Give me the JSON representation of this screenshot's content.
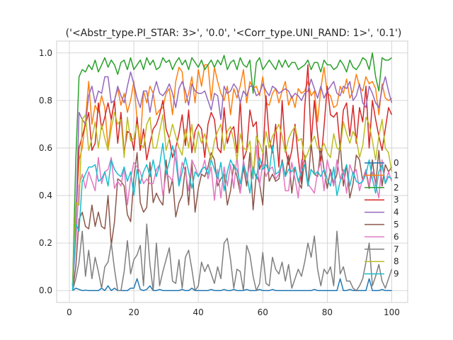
{
  "chart_data": {
    "type": "line",
    "title": "('<Abstr_type.PI_STAR: 3>', '0.0', '<Corr_type.UNI_RAND: 1>', '0.1')",
    "xlabel": "",
    "ylabel": "",
    "xlim": [
      -3.95,
      104.95
    ],
    "ylim": [
      -0.05,
      1.05
    ],
    "x_ticks": [
      0,
      20,
      40,
      60,
      80,
      100
    ],
    "y_ticks": [
      0.0,
      0.2,
      0.4,
      0.6,
      0.8,
      1.0
    ],
    "x_tick_labels": [
      "0",
      "20",
      "40",
      "60",
      "80",
      "100"
    ],
    "y_tick_labels": [
      "0.0",
      "0.2",
      "0.4",
      "0.6",
      "0.8",
      "1.0"
    ],
    "grid": true,
    "legend_position": "lower-right",
    "x_start": 1,
    "x_end": 100,
    "series": [
      {
        "name": "0",
        "color": "#1f77b4",
        "values": [
          0.0,
          0.01,
          0.005,
          0.0,
          0.002,
          0.0,
          0.0,
          0.0,
          0.0,
          0.01,
          0.0,
          0.02,
          0.0,
          0.01,
          0.0,
          0.0,
          0.0,
          0.0,
          0.01,
          0.01,
          0.05,
          0.005,
          0.0,
          0.005,
          0.02,
          0.0,
          0.0,
          0.005,
          0.0,
          0.0,
          0.0,
          0.0,
          0.0,
          0.0,
          0.005,
          0.0,
          0.0,
          0.01,
          0.0,
          0.0,
          0.0,
          0.0,
          0.0,
          0.005,
          0.0,
          0.0,
          0.0,
          0.005,
          0.0,
          0.0,
          0.005,
          0.0,
          0.0,
          0.0,
          0.005,
          0.0,
          0.0,
          0.0,
          0.005,
          0.0,
          0.0,
          0.0,
          0.005,
          0.0,
          0.0,
          0.0,
          0.0,
          0.0,
          0.0,
          0.0,
          0.0,
          0.0,
          0.0,
          0.0,
          0.0,
          0.005,
          0.0,
          0.0,
          0.0,
          0.0,
          0.0,
          0.0,
          0.0,
          0.05,
          0.0,
          0.0,
          0.005,
          0.0,
          0.0,
          0.0,
          0.0,
          0.0,
          0.05,
          0.0,
          0.0,
          0.0,
          0.005,
          0.0,
          0.0,
          0.0
        ]
      },
      {
        "name": "1",
        "color": "#ff7f0e",
        "values": [
          0.03,
          0.3,
          0.55,
          0.6,
          0.72,
          0.88,
          0.7,
          0.78,
          0.75,
          0.82,
          0.77,
          0.6,
          0.72,
          0.8,
          0.85,
          0.78,
          0.83,
          0.75,
          0.8,
          0.88,
          0.72,
          0.62,
          0.84,
          0.79,
          0.86,
          0.83,
          0.74,
          0.76,
          0.77,
          0.83,
          0.85,
          0.74,
          0.88,
          0.94,
          0.92,
          0.79,
          0.83,
          0.9,
          0.79,
          0.93,
          0.86,
          0.95,
          0.95,
          0.8,
          0.94,
          0.88,
          0.83,
          0.8,
          0.86,
          0.74,
          0.85,
          0.81,
          0.86,
          0.93,
          0.79,
          0.88,
          0.85,
          0.86,
          0.82,
          0.9,
          0.79,
          0.78,
          0.83,
          0.85,
          0.79,
          0.84,
          0.88,
          0.78,
          0.82,
          0.77,
          0.85,
          0.83,
          0.84,
          0.88,
          0.82,
          0.84,
          0.71,
          0.85,
          0.94,
          0.83,
          0.82,
          0.77,
          0.78,
          0.86,
          0.83,
          0.89,
          0.81,
          0.84,
          0.91,
          0.86,
          0.84,
          0.9,
          0.87,
          0.88,
          0.85,
          0.74,
          0.87,
          0.81,
          0.8,
          0.81
        ]
      },
      {
        "name": "2",
        "color": "#2ca02c",
        "values": [
          0.02,
          0.55,
          0.9,
          0.93,
          0.92,
          0.95,
          0.93,
          0.97,
          0.92,
          0.95,
          0.98,
          0.94,
          0.97,
          0.95,
          0.91,
          0.96,
          0.97,
          0.93,
          0.98,
          0.93,
          0.95,
          0.97,
          0.93,
          0.98,
          0.95,
          0.97,
          0.93,
          0.94,
          0.98,
          0.96,
          0.97,
          0.93,
          0.96,
          0.98,
          0.95,
          0.97,
          0.93,
          0.98,
          0.96,
          0.94,
          0.97,
          0.93,
          0.95,
          0.97,
          0.94,
          0.97,
          0.95,
          0.99,
          0.93,
          0.96,
          0.97,
          0.93,
          0.98,
          0.95,
          0.94,
          0.97,
          0.83,
          0.96,
          0.98,
          0.93,
          0.95,
          0.97,
          0.95,
          0.93,
          0.97,
          0.94,
          0.97,
          0.94,
          0.96,
          0.96,
          0.93,
          0.94,
          0.95,
          0.97,
          0.93,
          0.96,
          0.96,
          0.92,
          0.97,
          0.95,
          0.95,
          0.93,
          0.94,
          0.97,
          0.95,
          0.92,
          0.97,
          0.94,
          0.93,
          0.95,
          0.98,
          0.97,
          0.93,
          1.0,
          0.9,
          0.84,
          0.98,
          0.97,
          0.97,
          0.98
        ]
      },
      {
        "name": "3",
        "color": "#d62728",
        "values": [
          0.02,
          0.32,
          0.6,
          0.65,
          0.7,
          0.75,
          0.59,
          0.62,
          0.79,
          0.68,
          0.73,
          0.79,
          0.72,
          0.8,
          0.62,
          0.75,
          0.58,
          0.67,
          0.66,
          0.59,
          0.73,
          0.59,
          0.68,
          0.55,
          0.62,
          0.68,
          0.7,
          0.74,
          0.8,
          0.68,
          0.64,
          0.56,
          0.6,
          0.66,
          0.74,
          0.61,
          0.76,
          0.58,
          0.67,
          0.7,
          0.68,
          0.56,
          0.7,
          0.75,
          0.72,
          0.6,
          0.58,
          0.77,
          0.62,
          0.67,
          0.69,
          0.58,
          0.8,
          0.55,
          0.59,
          0.76,
          0.69,
          0.71,
          0.51,
          0.55,
          0.82,
          0.64,
          0.58,
          0.7,
          0.52,
          0.8,
          0.6,
          0.53,
          0.59,
          0.7,
          0.56,
          0.45,
          0.77,
          0.95,
          0.62,
          0.8,
          0.66,
          0.54,
          0.69,
          0.86,
          0.74,
          0.73,
          0.75,
          0.6,
          0.76,
          0.79,
          0.65,
          0.78,
          0.62,
          0.77,
          0.71,
          0.86,
          0.6,
          0.8,
          0.72,
          0.65,
          0.59,
          0.68,
          0.77,
          0.74
        ]
      },
      {
        "name": "4",
        "color": "#9467bd",
        "values": [
          0.02,
          0.28,
          0.75,
          0.72,
          0.7,
          0.82,
          0.86,
          0.79,
          0.84,
          0.83,
          0.9,
          0.9,
          0.79,
          0.8,
          0.86,
          0.82,
          0.79,
          0.86,
          0.92,
          0.87,
          0.81,
          0.77,
          0.84,
          0.84,
          0.75,
          0.83,
          0.88,
          0.83,
          0.82,
          0.84,
          0.87,
          0.83,
          0.77,
          0.85,
          0.88,
          0.84,
          0.78,
          0.87,
          0.84,
          0.83,
          0.83,
          0.84,
          0.8,
          0.76,
          0.83,
          0.82,
          0.72,
          0.86,
          0.83,
          0.84,
          0.87,
          0.85,
          0.79,
          0.84,
          0.82,
          0.86,
          0.86,
          0.82,
          0.83,
          0.87,
          0.84,
          0.82,
          0.86,
          0.85,
          0.83,
          0.84,
          0.85,
          0.84,
          0.81,
          0.83,
          0.82,
          0.8,
          0.83,
          0.84,
          0.89,
          0.85,
          0.81,
          0.86,
          0.81,
          0.84,
          0.86,
          0.88,
          0.83,
          0.82,
          0.86,
          0.85,
          0.88,
          0.8,
          0.82,
          0.87,
          0.79,
          0.77,
          0.86,
          0.83,
          0.79,
          0.77,
          0.85,
          0.9,
          0.84,
          0.79
        ]
      },
      {
        "name": "5",
        "color": "#8c564b",
        "values": [
          0.0,
          0.1,
          0.3,
          0.33,
          0.27,
          0.26,
          0.36,
          0.27,
          0.33,
          0.27,
          0.26,
          0.4,
          0.19,
          0.29,
          0.47,
          0.46,
          0.44,
          0.32,
          0.29,
          0.47,
          0.58,
          0.37,
          0.33,
          0.35,
          0.54,
          0.37,
          0.41,
          0.38,
          0.36,
          0.55,
          0.41,
          0.47,
          0.31,
          0.37,
          0.4,
          0.52,
          0.36,
          0.54,
          0.33,
          0.43,
          0.49,
          0.48,
          0.52,
          0.58,
          0.55,
          0.44,
          0.47,
          0.49,
          0.36,
          0.42,
          0.53,
          0.48,
          0.41,
          0.52,
          0.44,
          0.58,
          0.34,
          0.49,
          0.45,
          0.36,
          0.61,
          0.46,
          0.49,
          0.46,
          0.47,
          0.55,
          0.48,
          0.57,
          0.41,
          0.52,
          0.46,
          0.43,
          0.57,
          0.44,
          0.62,
          0.49,
          0.48,
          0.6,
          0.51,
          0.43,
          0.51,
          0.45,
          0.49,
          0.62,
          0.44,
          0.53,
          0.39,
          0.45,
          0.57,
          0.55,
          0.46,
          0.5,
          0.43,
          0.55,
          0.44,
          0.59,
          0.44,
          0.53,
          0.5,
          0.52
        ]
      },
      {
        "name": "6",
        "color": "#e377c2",
        "values": [
          0.01,
          0.2,
          0.44,
          0.49,
          0.43,
          0.5,
          0.46,
          0.42,
          0.56,
          0.45,
          0.5,
          0.51,
          0.56,
          0.43,
          0.46,
          0.44,
          0.52,
          0.36,
          0.47,
          0.54,
          0.52,
          0.5,
          0.45,
          0.47,
          0.45,
          0.45,
          0.51,
          0.53,
          0.4,
          0.49,
          0.48,
          0.46,
          0.61,
          0.45,
          0.54,
          0.5,
          0.42,
          0.55,
          0.52,
          0.48,
          0.5,
          0.55,
          0.47,
          0.52,
          0.38,
          0.51,
          0.39,
          0.52,
          0.44,
          0.53,
          0.43,
          0.57,
          0.41,
          0.55,
          0.47,
          0.53,
          0.47,
          0.61,
          0.44,
          0.54,
          0.48,
          0.51,
          0.52,
          0.47,
          0.49,
          0.54,
          0.42,
          0.42,
          0.54,
          0.47,
          0.39,
          0.55,
          0.53,
          0.45,
          0.43,
          0.41,
          0.5,
          0.54,
          0.42,
          0.55,
          0.49,
          0.44,
          0.55,
          0.47,
          0.51,
          0.41,
          0.53,
          0.49,
          0.51,
          0.42,
          0.47,
          0.51,
          0.44,
          0.5,
          0.45,
          0.39,
          0.55,
          0.45,
          0.5,
          0.46
        ]
      },
      {
        "name": "7",
        "color": "#7f7f7f",
        "values": [
          0.0,
          0.05,
          0.12,
          0.25,
          0.06,
          0.17,
          0.05,
          0.14,
          0.08,
          0.01,
          0.1,
          0.12,
          0.2,
          0.09,
          0.0,
          0.0,
          0.08,
          0.21,
          0.07,
          0.13,
          0.15,
          0.19,
          0.02,
          0.28,
          0.11,
          0.0,
          0.2,
          0.02,
          0.08,
          0.13,
          0.18,
          0.04,
          0.03,
          0.13,
          0.01,
          0.14,
          0.17,
          0.09,
          0.0,
          0.02,
          0.12,
          0.08,
          0.11,
          0.07,
          0.03,
          0.1,
          0.05,
          0.2,
          0.22,
          0.13,
          0.01,
          0.09,
          0.08,
          0.0,
          0.19,
          0.15,
          0.06,
          0.0,
          0.03,
          0.16,
          0.03,
          0.02,
          0.14,
          0.09,
          0.07,
          0.12,
          0.04,
          0.11,
          0.01,
          0.05,
          0.09,
          0.06,
          0.12,
          0.2,
          0.14,
          0.23,
          0.09,
          0.02,
          0.09,
          0.07,
          0.1,
          0.02,
          0.25,
          0.07,
          0.1,
          0.04,
          0.04,
          0.01,
          0.0,
          0.02,
          0.05,
          0.12,
          0.2,
          0.02,
          0.06,
          0.11,
          0.04,
          0.01,
          0.05,
          0.09
        ]
      },
      {
        "name": "8",
        "color": "#bcbd22",
        "values": [
          0.03,
          0.37,
          0.36,
          0.72,
          0.74,
          0.59,
          0.64,
          0.71,
          0.6,
          0.7,
          0.64,
          0.59,
          0.68,
          0.75,
          0.7,
          0.72,
          0.56,
          0.73,
          0.63,
          0.64,
          0.7,
          0.62,
          0.6,
          0.7,
          0.73,
          0.6,
          0.6,
          0.67,
          0.74,
          0.59,
          0.64,
          0.7,
          0.65,
          0.6,
          0.57,
          0.68,
          0.6,
          0.7,
          0.58,
          0.67,
          0.62,
          0.66,
          0.6,
          0.55,
          0.63,
          0.67,
          0.7,
          0.59,
          0.67,
          0.69,
          0.63,
          0.55,
          0.66,
          0.6,
          0.59,
          0.63,
          0.48,
          0.65,
          0.62,
          0.58,
          0.67,
          0.6,
          0.65,
          0.67,
          0.7,
          0.65,
          0.58,
          0.64,
          0.67,
          0.69,
          0.63,
          0.64,
          0.55,
          0.58,
          0.62,
          0.65,
          0.6,
          0.59,
          0.62,
          0.58,
          0.56,
          0.66,
          0.6,
          0.59,
          0.71,
          0.66,
          0.62,
          0.67,
          0.64,
          0.56,
          0.61,
          0.73,
          0.7,
          0.63,
          0.55,
          0.65,
          0.72,
          0.6,
          0.58,
          0.5
        ]
      },
      {
        "name": "9",
        "color": "#17becf",
        "values": [
          0.0,
          0.28,
          0.25,
          0.46,
          0.49,
          0.52,
          0.52,
          0.53,
          0.46,
          0.47,
          0.5,
          0.44,
          0.55,
          0.51,
          0.49,
          0.48,
          0.52,
          0.46,
          0.5,
          0.4,
          0.51,
          0.45,
          0.5,
          0.53,
          0.48,
          0.55,
          0.48,
          0.53,
          0.62,
          0.49,
          0.54,
          0.61,
          0.55,
          0.44,
          0.5,
          0.56,
          0.5,
          0.43,
          0.5,
          0.48,
          0.51,
          0.52,
          0.49,
          0.55,
          0.51,
          0.47,
          0.54,
          0.42,
          0.5,
          0.55,
          0.52,
          0.51,
          0.45,
          0.53,
          0.49,
          0.41,
          0.52,
          0.47,
          0.56,
          0.51,
          0.53,
          0.5,
          0.61,
          0.49,
          0.5,
          0.54,
          0.48,
          0.51,
          0.5,
          0.52,
          0.46,
          0.5,
          0.53,
          0.44,
          0.51,
          0.49,
          0.5,
          0.48,
          0.51,
          0.47,
          0.44,
          0.52,
          0.4,
          0.46,
          0.49,
          0.53,
          0.44,
          0.5,
          0.46,
          0.45,
          0.46,
          0.49,
          0.55,
          0.47,
          0.41,
          0.5,
          0.53,
          0.45,
          0.48,
          0.47
        ]
      }
    ]
  }
}
